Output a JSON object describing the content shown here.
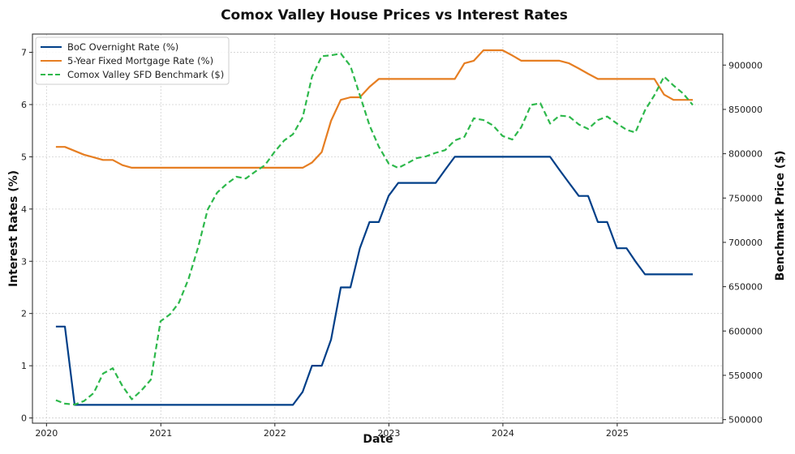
{
  "chart_data": {
    "type": "line",
    "title": "Comox Valley House Prices vs Interest Rates",
    "xlabel": "Date",
    "ylabel_left": "Interest Rates (%)",
    "ylabel_right": "Benchmark Price ($)",
    "x_ticks": [
      "2020",
      "2021",
      "2022",
      "2023",
      "2024",
      "2025"
    ],
    "y_left_ticks": [
      "0",
      "1",
      "2",
      "3",
      "4",
      "5",
      "6",
      "7"
    ],
    "y_right_ticks": [
      "500000",
      "550000",
      "600000",
      "650000",
      "700000",
      "750000",
      "800000",
      "850000",
      "900000"
    ],
    "ylim_left": [
      -0.1,
      7.35
    ],
    "ylim_right": [
      496000,
      935000
    ],
    "xlim": [
      "2019-11-17",
      "2025-12-05"
    ],
    "grid": true,
    "legend_position": "top-left",
    "colors": {
      "boc": "#003f88",
      "mortgage": "#e67e22",
      "benchmark": "#2db84b"
    },
    "series": [
      {
        "name": "BoC Overnight Rate (%)",
        "axis": "left",
        "style": "solid",
        "points": [
          [
            "2020-01-31",
            1.75
          ],
          [
            "2020-02-29",
            1.75
          ],
          [
            "2020-03-31",
            0.25
          ],
          [
            "2020-04-30",
            0.25
          ],
          [
            "2022-02-28",
            0.25
          ],
          [
            "2022-03-31",
            0.5
          ],
          [
            "2022-04-30",
            1.0
          ],
          [
            "2022-05-31",
            1.0
          ],
          [
            "2022-06-30",
            1.5
          ],
          [
            "2022-07-31",
            2.5
          ],
          [
            "2022-08-31",
            2.5
          ],
          [
            "2022-09-30",
            3.25
          ],
          [
            "2022-10-31",
            3.75
          ],
          [
            "2022-11-30",
            3.75
          ],
          [
            "2022-12-31",
            4.25
          ],
          [
            "2023-01-31",
            4.5
          ],
          [
            "2023-02-28",
            4.5
          ],
          [
            "2023-05-31",
            4.5
          ],
          [
            "2023-06-30",
            4.75
          ],
          [
            "2023-07-31",
            5.0
          ],
          [
            "2024-05-31",
            5.0
          ],
          [
            "2024-06-30",
            4.75
          ],
          [
            "2024-07-31",
            4.5
          ],
          [
            "2024-08-31",
            4.25
          ],
          [
            "2024-09-30",
            4.25
          ],
          [
            "2024-10-31",
            3.75
          ],
          [
            "2024-11-30",
            3.75
          ],
          [
            "2024-12-31",
            3.25
          ],
          [
            "2025-01-31",
            3.25
          ],
          [
            "2025-02-28",
            3.0
          ],
          [
            "2025-03-31",
            2.75
          ],
          [
            "2025-08-31",
            2.75
          ]
        ]
      },
      {
        "name": "5-Year Fixed Mortgage Rate (%)",
        "axis": "left",
        "style": "solid",
        "points": [
          [
            "2020-01-31",
            5.19
          ],
          [
            "2020-02-29",
            5.19
          ],
          [
            "2020-04-30",
            5.04
          ],
          [
            "2020-05-31",
            4.99
          ],
          [
            "2020-06-30",
            4.94
          ],
          [
            "2020-07-31",
            4.94
          ],
          [
            "2020-08-31",
            4.84
          ],
          [
            "2020-09-30",
            4.79
          ],
          [
            "2022-02-28",
            4.79
          ],
          [
            "2022-03-31",
            4.79
          ],
          [
            "2022-04-30",
            4.89
          ],
          [
            "2022-05-31",
            5.09
          ],
          [
            "2022-06-30",
            5.69
          ],
          [
            "2022-07-31",
            6.09
          ],
          [
            "2022-08-31",
            6.14
          ],
          [
            "2022-09-30",
            6.14
          ],
          [
            "2022-10-31",
            6.34
          ],
          [
            "2022-11-30",
            6.49
          ],
          [
            "2023-07-31",
            6.49
          ],
          [
            "2023-08-31",
            6.79
          ],
          [
            "2023-09-30",
            6.84
          ],
          [
            "2023-10-31",
            7.04
          ],
          [
            "2023-12-31",
            7.04
          ],
          [
            "2024-01-31",
            6.94
          ],
          [
            "2024-02-29",
            6.84
          ],
          [
            "2024-06-30",
            6.84
          ],
          [
            "2024-07-31",
            6.79
          ],
          [
            "2024-08-31",
            6.69
          ],
          [
            "2024-09-30",
            6.59
          ],
          [
            "2024-10-31",
            6.49
          ],
          [
            "2025-04-30",
            6.49
          ],
          [
            "2025-05-31",
            6.19
          ],
          [
            "2025-06-30",
            6.09
          ],
          [
            "2025-08-31",
            6.09
          ]
        ]
      },
      {
        "name": "Comox Valley SFD Benchmark ($)",
        "axis": "right",
        "style": "dashed",
        "points": [
          [
            "2020-01-31",
            522000
          ],
          [
            "2020-02-29",
            518000
          ],
          [
            "2020-03-31",
            517000
          ],
          [
            "2020-04-30",
            521000
          ],
          [
            "2020-05-31",
            530000
          ],
          [
            "2020-06-30",
            552000
          ],
          [
            "2020-07-31",
            558000
          ],
          [
            "2020-08-31",
            538000
          ],
          [
            "2020-09-30",
            523000
          ],
          [
            "2020-10-31",
            533000
          ],
          [
            "2020-11-30",
            545000
          ],
          [
            "2020-12-31",
            611000
          ],
          [
            "2021-01-31",
            619000
          ],
          [
            "2021-02-28",
            632000
          ],
          [
            "2021-03-31",
            659000
          ],
          [
            "2021-04-30",
            694000
          ],
          [
            "2021-05-31",
            737000
          ],
          [
            "2021-06-30",
            756000
          ],
          [
            "2021-07-31",
            766000
          ],
          [
            "2021-08-31",
            774000
          ],
          [
            "2021-09-30",
            772000
          ],
          [
            "2021-10-31",
            780000
          ],
          [
            "2021-11-30",
            787000
          ],
          [
            "2021-12-31",
            802000
          ],
          [
            "2022-01-31",
            815000
          ],
          [
            "2022-02-28",
            822000
          ],
          [
            "2022-03-31",
            841000
          ],
          [
            "2022-04-30",
            887000
          ],
          [
            "2022-05-31",
            910000
          ],
          [
            "2022-06-30",
            911000
          ],
          [
            "2022-07-31",
            913000
          ],
          [
            "2022-08-31",
            899000
          ],
          [
            "2022-09-30",
            866000
          ],
          [
            "2022-10-31",
            832000
          ],
          [
            "2022-11-30",
            808000
          ],
          [
            "2022-12-31",
            789000
          ],
          [
            "2023-01-31",
            784000
          ],
          [
            "2023-02-28",
            789000
          ],
          [
            "2023-03-31",
            795000
          ],
          [
            "2023-04-30",
            797000
          ],
          [
            "2023-05-31",
            801000
          ],
          [
            "2023-06-30",
            804000
          ],
          [
            "2023-07-31",
            815000
          ],
          [
            "2023-08-31",
            819000
          ],
          [
            "2023-09-30",
            840000
          ],
          [
            "2023-10-31",
            838000
          ],
          [
            "2023-11-30",
            832000
          ],
          [
            "2023-12-31",
            820000
          ],
          [
            "2024-01-31",
            816000
          ],
          [
            "2024-02-29",
            830000
          ],
          [
            "2024-03-31",
            855000
          ],
          [
            "2024-04-30",
            857000
          ],
          [
            "2024-05-31",
            834000
          ],
          [
            "2024-06-30",
            843000
          ],
          [
            "2024-07-31",
            842000
          ],
          [
            "2024-08-31",
            833000
          ],
          [
            "2024-09-30",
            828000
          ],
          [
            "2024-10-31",
            838000
          ],
          [
            "2024-11-30",
            842000
          ],
          [
            "2024-12-31",
            834000
          ],
          [
            "2025-01-31",
            827000
          ],
          [
            "2025-02-28",
            824000
          ],
          [
            "2025-03-31",
            849000
          ],
          [
            "2025-04-30",
            866000
          ],
          [
            "2025-05-31",
            887000
          ],
          [
            "2025-06-30",
            877000
          ],
          [
            "2025-07-31",
            868000
          ],
          [
            "2025-08-31",
            855000
          ]
        ]
      }
    ]
  }
}
